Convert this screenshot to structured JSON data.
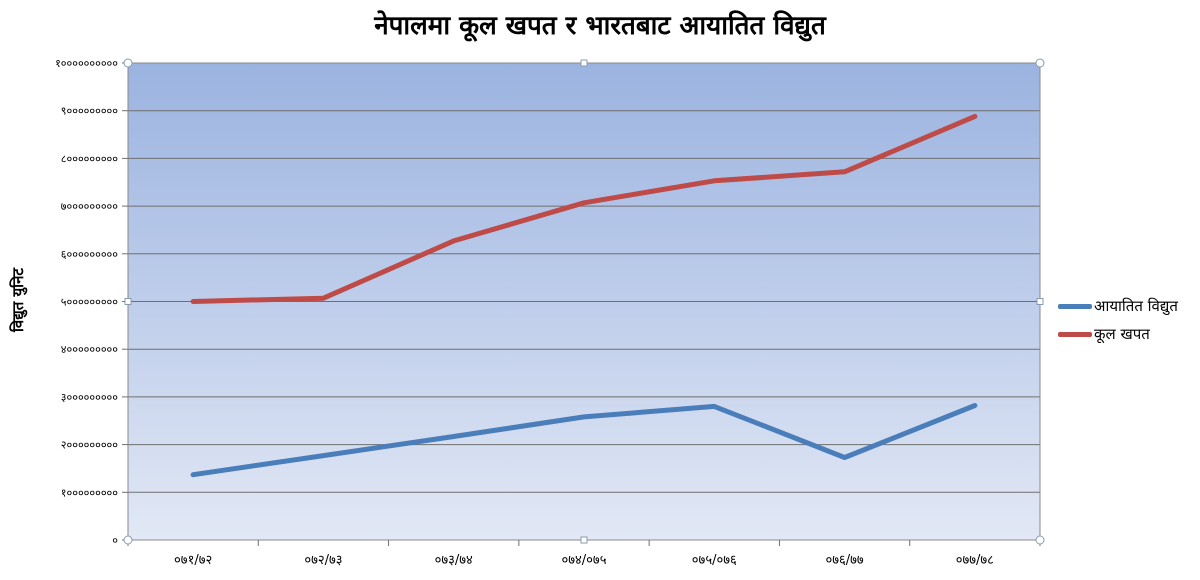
{
  "chart_data": {
    "type": "line",
    "title": "नेपालमा कूल खपत र भारतबाट आयातित विद्युत",
    "xlabel": "",
    "ylabel": "विद्युत युनिट",
    "categories": [
      "०७१/७२",
      "०७२/७३",
      "०७३/७४",
      "०७४/०७५",
      "०७५/०७६",
      "०७६/७७",
      "०७७/७८"
    ],
    "series": [
      {
        "name": "आयातित विद्युत",
        "color": "#4a7ebb",
        "values": [
          137000000,
          177000000,
          217000000,
          258000000,
          280000000,
          173000000,
          282000000
        ]
      },
      {
        "name": "कूल खपत",
        "color": "#be4b48",
        "values": [
          500000000,
          507000000,
          627000000,
          707000000,
          753000000,
          772000000,
          888000000
        ]
      }
    ],
    "ylim": [
      0,
      1000000000
    ],
    "yticks": [
      {
        "value": 0,
        "label": "०"
      },
      {
        "value": 100000000,
        "label": "१०००००००००"
      },
      {
        "value": 200000000,
        "label": "२०००००००००"
      },
      {
        "value": 300000000,
        "label": "३०००००००००"
      },
      {
        "value": 400000000,
        "label": "४०००००००००"
      },
      {
        "value": 500000000,
        "label": "५०००००००००"
      },
      {
        "value": 600000000,
        "label": "६०००००००००"
      },
      {
        "value": 700000000,
        "label": "७०००००००००"
      },
      {
        "value": 800000000,
        "label": "८०००००००००"
      },
      {
        "value": 900000000,
        "label": "९०००००००००"
      },
      {
        "value": 1000000000,
        "label": "१००००००००००"
      }
    ],
    "grid": true,
    "legend_position": "right",
    "plot_background": [
      "#9bb3e0",
      "#e2e8f5"
    ]
  }
}
